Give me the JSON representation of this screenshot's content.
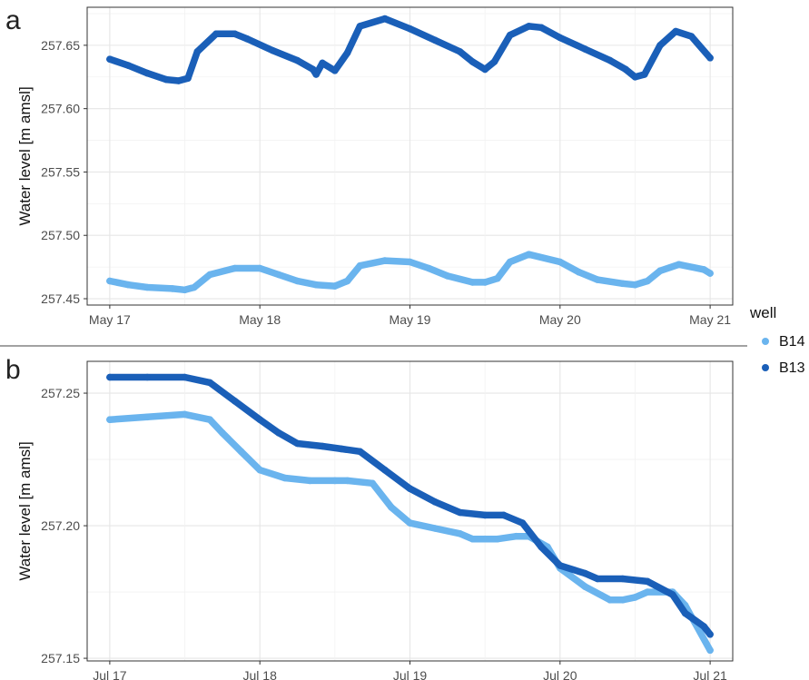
{
  "legend": {
    "title": "well",
    "entries": [
      {
        "label": "B14",
        "color": "#6ab4ee"
      },
      {
        "label": "B13",
        "color": "#1a5fb8"
      }
    ]
  },
  "chart_data": [
    {
      "panel_label": "a",
      "type": "scatter",
      "ylabel": "Water level [m amsl]",
      "xlabel": "",
      "xlim": [
        "2021-05-17",
        "2021-05-21"
      ],
      "xticks": [
        "May 17",
        "May 18",
        "May 19",
        "May 20",
        "May 21"
      ],
      "ylim": [
        257.445,
        257.68
      ],
      "yticks": [
        "257.45",
        "257.50",
        "257.55",
        "257.60",
        "257.65"
      ],
      "grid": true,
      "legend_position": "right",
      "series": [
        {
          "name": "B14",
          "color": "#6ab4ee",
          "x": [
            "2021-05-17T00:00",
            "2021-05-17T03:00",
            "2021-05-17T06:00",
            "2021-05-17T10:00",
            "2021-05-17T12:00",
            "2021-05-17T13:30",
            "2021-05-17T16:00",
            "2021-05-17T20:00",
            "2021-05-18T00:00",
            "2021-05-18T03:00",
            "2021-05-18T06:00",
            "2021-05-18T09:00",
            "2021-05-18T12:00",
            "2021-05-18T14:00",
            "2021-05-18T16:00",
            "2021-05-18T20:00",
            "2021-05-19T00:00",
            "2021-05-19T03:00",
            "2021-05-19T06:00",
            "2021-05-19T10:00",
            "2021-05-19T12:00",
            "2021-05-19T14:00",
            "2021-05-19T16:00",
            "2021-05-19T19:00",
            "2021-05-20T00:00",
            "2021-05-20T03:00",
            "2021-05-20T06:00",
            "2021-05-20T10:00",
            "2021-05-20T12:00",
            "2021-05-20T14:00",
            "2021-05-20T16:00",
            "2021-05-20T19:00",
            "2021-05-20T23:00",
            "2021-05-21T00:00"
          ],
          "y": [
            257.464,
            257.461,
            257.459,
            257.458,
            257.457,
            257.459,
            257.469,
            257.474,
            257.474,
            257.469,
            257.464,
            257.461,
            257.46,
            257.464,
            257.476,
            257.48,
            257.479,
            257.474,
            257.468,
            257.463,
            257.463,
            257.466,
            257.479,
            257.485,
            257.479,
            257.471,
            257.465,
            257.462,
            257.461,
            257.464,
            257.472,
            257.477,
            257.473,
            257.47
          ]
        },
        {
          "name": "B13",
          "color": "#1a5fb8",
          "x": [
            "2021-05-17T00:00",
            "2021-05-17T03:00",
            "2021-05-17T06:00",
            "2021-05-17T09:00",
            "2021-05-17T11:00",
            "2021-05-17T12:30",
            "2021-05-17T14:00",
            "2021-05-17T17:00",
            "2021-05-17T20:00",
            "2021-05-17T22:00",
            "2021-05-18T02:00",
            "2021-05-18T06:00",
            "2021-05-18T08:30",
            "2021-05-18T09:00",
            "2021-05-18T10:00",
            "2021-05-18T12:00",
            "2021-05-18T14:00",
            "2021-05-18T16:00",
            "2021-05-18T20:00",
            "2021-05-19T00:00",
            "2021-05-19T04:00",
            "2021-05-19T08:00",
            "2021-05-19T10:00",
            "2021-05-19T12:00",
            "2021-05-19T13:30",
            "2021-05-19T16:00",
            "2021-05-19T19:00",
            "2021-05-19T21:00",
            "2021-05-20T00:00",
            "2021-05-20T04:00",
            "2021-05-20T08:00",
            "2021-05-20T10:30",
            "2021-05-20T12:00",
            "2021-05-20T13:30",
            "2021-05-20T16:00",
            "2021-05-20T18:30",
            "2021-05-20T21:00",
            "2021-05-21T00:00"
          ],
          "y": [
            257.639,
            257.634,
            257.628,
            257.623,
            257.622,
            257.624,
            257.645,
            257.659,
            257.659,
            257.655,
            257.646,
            257.638,
            257.631,
            257.627,
            257.636,
            257.63,
            257.644,
            257.665,
            257.671,
            257.663,
            257.654,
            257.645,
            257.637,
            257.631,
            257.637,
            257.658,
            257.665,
            257.664,
            257.656,
            257.647,
            257.638,
            257.631,
            257.625,
            257.627,
            257.65,
            257.661,
            257.657,
            257.64
          ]
        }
      ]
    },
    {
      "panel_label": "b",
      "type": "scatter",
      "ylabel": "Water level [m amsl]",
      "xlabel": "",
      "xlim": [
        "2021-07-17",
        "2021-07-21"
      ],
      "xticks": [
        "Jul 17",
        "Jul 18",
        "Jul 19",
        "Jul 20",
        "Jul 21"
      ],
      "ylim": [
        257.149,
        257.262
      ],
      "yticks": [
        "257.15",
        "257.20",
        "257.25"
      ],
      "grid": true,
      "series": [
        {
          "name": "B14",
          "color": "#6ab4ee",
          "x": [
            "2021-07-17T00:00",
            "2021-07-17T06:00",
            "2021-07-17T12:00",
            "2021-07-17T16:00",
            "2021-07-17T18:00",
            "2021-07-17T21:00",
            "2021-07-18T00:00",
            "2021-07-18T04:00",
            "2021-07-18T08:00",
            "2021-07-18T12:00",
            "2021-07-18T14:00",
            "2021-07-18T18:00",
            "2021-07-18T21:00",
            "2021-07-19T00:00",
            "2021-07-19T04:00",
            "2021-07-19T08:00",
            "2021-07-19T10:00",
            "2021-07-19T12:00",
            "2021-07-19T14:00",
            "2021-07-19T17:00",
            "2021-07-19T19:00",
            "2021-07-19T22:00",
            "2021-07-20T00:00",
            "2021-07-20T04:00",
            "2021-07-20T08:00",
            "2021-07-20T10:00",
            "2021-07-20T12:00",
            "2021-07-20T14:00",
            "2021-07-20T18:00",
            "2021-07-20T20:00",
            "2021-07-21T00:00"
          ],
          "y": [
            257.24,
            257.241,
            257.242,
            257.24,
            257.235,
            257.228,
            257.221,
            257.218,
            257.217,
            257.217,
            257.217,
            257.216,
            257.207,
            257.201,
            257.199,
            257.197,
            257.195,
            257.195,
            257.195,
            257.196,
            257.196,
            257.192,
            257.184,
            257.177,
            257.172,
            257.172,
            257.173,
            257.175,
            257.175,
            257.17,
            257.153
          ]
        },
        {
          "name": "B13",
          "color": "#1a5fb8",
          "x": [
            "2021-07-17T00:00",
            "2021-07-17T06:00",
            "2021-07-17T12:00",
            "2021-07-17T16:00",
            "2021-07-17T20:00",
            "2021-07-18T00:00",
            "2021-07-18T03:00",
            "2021-07-18T06:00",
            "2021-07-18T10:00",
            "2021-07-18T13:00",
            "2021-07-18T16:00",
            "2021-07-18T20:00",
            "2021-07-19T00:00",
            "2021-07-19T04:00",
            "2021-07-19T08:00",
            "2021-07-19T12:00",
            "2021-07-19T15:00",
            "2021-07-19T18:00",
            "2021-07-19T21:00",
            "2021-07-20T00:00",
            "2021-07-20T04:00",
            "2021-07-20T06:00",
            "2021-07-20T10:00",
            "2021-07-20T14:00",
            "2021-07-20T18:00",
            "2021-07-20T20:00",
            "2021-07-20T23:00",
            "2021-07-21T00:00"
          ],
          "y": [
            257.256,
            257.256,
            257.256,
            257.254,
            257.247,
            257.24,
            257.235,
            257.231,
            257.23,
            257.229,
            257.228,
            257.221,
            257.214,
            257.209,
            257.205,
            257.204,
            257.204,
            257.201,
            257.192,
            257.185,
            257.182,
            257.18,
            257.18,
            257.179,
            257.174,
            257.167,
            257.162,
            257.159
          ]
        }
      ]
    }
  ]
}
